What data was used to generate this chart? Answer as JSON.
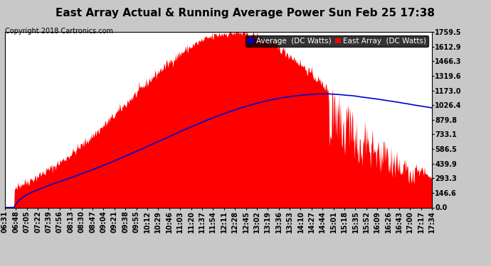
{
  "title": "East Array Actual & Running Average Power Sun Feb 25 17:38",
  "copyright": "Copyright 2018 Cartronics.com",
  "legend_avg": "Average  (DC Watts)",
  "legend_east": "East Array  (DC Watts)",
  "y_ticks": [
    0.0,
    146.6,
    293.3,
    439.9,
    586.5,
    733.1,
    879.8,
    1026.4,
    1173.0,
    1319.6,
    1466.3,
    1612.9,
    1759.5
  ],
  "x_tick_labels": [
    "06:31",
    "06:48",
    "07:05",
    "07:22",
    "07:39",
    "07:56",
    "08:13",
    "08:30",
    "08:47",
    "09:04",
    "09:21",
    "09:38",
    "09:55",
    "10:12",
    "10:29",
    "10:46",
    "11:03",
    "11:20",
    "11:37",
    "11:54",
    "12:11",
    "12:28",
    "12:45",
    "13:02",
    "13:19",
    "13:36",
    "13:53",
    "14:10",
    "14:27",
    "14:44",
    "15:01",
    "15:18",
    "15:35",
    "15:52",
    "16:09",
    "16:26",
    "16:43",
    "17:00",
    "17:17",
    "17:34"
  ],
  "ymax": 1759.5,
  "ymin": 0.0,
  "bar_color": "#ff0000",
  "avg_line_color": "#0000cc",
  "background_color": "#c8c8c8",
  "plot_bg_color": "#ffffff",
  "grid_color": "#ffffff",
  "title_color": "#000000",
  "title_fontsize": 11,
  "copyright_fontsize": 7,
  "label_fontsize": 7,
  "legend_fontsize": 7.5
}
